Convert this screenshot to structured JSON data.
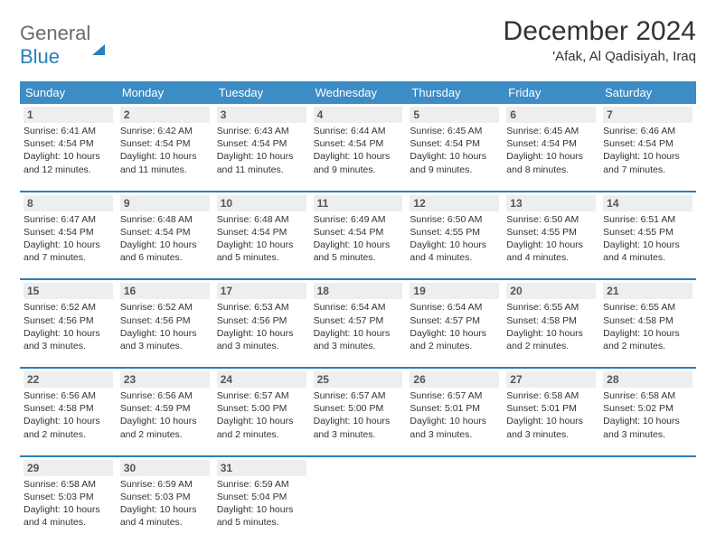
{
  "logo": {
    "text1": "General",
    "text2": "Blue"
  },
  "title": "December 2024",
  "location": "'Afak, Al Qadisiyah, Iraq",
  "colors": {
    "header_bg": "#3c8cc6",
    "accent": "#2a7fba",
    "date_bg": "#eceeef",
    "text": "#333333",
    "logo_gray": "#6a6a6a"
  },
  "dayNames": [
    "Sunday",
    "Monday",
    "Tuesday",
    "Wednesday",
    "Thursday",
    "Friday",
    "Saturday"
  ],
  "weeks": [
    [
      {
        "d": "1",
        "sr": "6:41 AM",
        "ss": "4:54 PM",
        "dl": "10 hours and 12 minutes."
      },
      {
        "d": "2",
        "sr": "6:42 AM",
        "ss": "4:54 PM",
        "dl": "10 hours and 11 minutes."
      },
      {
        "d": "3",
        "sr": "6:43 AM",
        "ss": "4:54 PM",
        "dl": "10 hours and 11 minutes."
      },
      {
        "d": "4",
        "sr": "6:44 AM",
        "ss": "4:54 PM",
        "dl": "10 hours and 9 minutes."
      },
      {
        "d": "5",
        "sr": "6:45 AM",
        "ss": "4:54 PM",
        "dl": "10 hours and 9 minutes."
      },
      {
        "d": "6",
        "sr": "6:45 AM",
        "ss": "4:54 PM",
        "dl": "10 hours and 8 minutes."
      },
      {
        "d": "7",
        "sr": "6:46 AM",
        "ss": "4:54 PM",
        "dl": "10 hours and 7 minutes."
      }
    ],
    [
      {
        "d": "8",
        "sr": "6:47 AM",
        "ss": "4:54 PM",
        "dl": "10 hours and 7 minutes."
      },
      {
        "d": "9",
        "sr": "6:48 AM",
        "ss": "4:54 PM",
        "dl": "10 hours and 6 minutes."
      },
      {
        "d": "10",
        "sr": "6:48 AM",
        "ss": "4:54 PM",
        "dl": "10 hours and 5 minutes."
      },
      {
        "d": "11",
        "sr": "6:49 AM",
        "ss": "4:54 PM",
        "dl": "10 hours and 5 minutes."
      },
      {
        "d": "12",
        "sr": "6:50 AM",
        "ss": "4:55 PM",
        "dl": "10 hours and 4 minutes."
      },
      {
        "d": "13",
        "sr": "6:50 AM",
        "ss": "4:55 PM",
        "dl": "10 hours and 4 minutes."
      },
      {
        "d": "14",
        "sr": "6:51 AM",
        "ss": "4:55 PM",
        "dl": "10 hours and 4 minutes."
      }
    ],
    [
      {
        "d": "15",
        "sr": "6:52 AM",
        "ss": "4:56 PM",
        "dl": "10 hours and 3 minutes."
      },
      {
        "d": "16",
        "sr": "6:52 AM",
        "ss": "4:56 PM",
        "dl": "10 hours and 3 minutes."
      },
      {
        "d": "17",
        "sr": "6:53 AM",
        "ss": "4:56 PM",
        "dl": "10 hours and 3 minutes."
      },
      {
        "d": "18",
        "sr": "6:54 AM",
        "ss": "4:57 PM",
        "dl": "10 hours and 3 minutes."
      },
      {
        "d": "19",
        "sr": "6:54 AM",
        "ss": "4:57 PM",
        "dl": "10 hours and 2 minutes."
      },
      {
        "d": "20",
        "sr": "6:55 AM",
        "ss": "4:58 PM",
        "dl": "10 hours and 2 minutes."
      },
      {
        "d": "21",
        "sr": "6:55 AM",
        "ss": "4:58 PM",
        "dl": "10 hours and 2 minutes."
      }
    ],
    [
      {
        "d": "22",
        "sr": "6:56 AM",
        "ss": "4:58 PM",
        "dl": "10 hours and 2 minutes."
      },
      {
        "d": "23",
        "sr": "6:56 AM",
        "ss": "4:59 PM",
        "dl": "10 hours and 2 minutes."
      },
      {
        "d": "24",
        "sr": "6:57 AM",
        "ss": "5:00 PM",
        "dl": "10 hours and 2 minutes."
      },
      {
        "d": "25",
        "sr": "6:57 AM",
        "ss": "5:00 PM",
        "dl": "10 hours and 3 minutes."
      },
      {
        "d": "26",
        "sr": "6:57 AM",
        "ss": "5:01 PM",
        "dl": "10 hours and 3 minutes."
      },
      {
        "d": "27",
        "sr": "6:58 AM",
        "ss": "5:01 PM",
        "dl": "10 hours and 3 minutes."
      },
      {
        "d": "28",
        "sr": "6:58 AM",
        "ss": "5:02 PM",
        "dl": "10 hours and 3 minutes."
      }
    ],
    [
      {
        "d": "29",
        "sr": "6:58 AM",
        "ss": "5:03 PM",
        "dl": "10 hours and 4 minutes."
      },
      {
        "d": "30",
        "sr": "6:59 AM",
        "ss": "5:03 PM",
        "dl": "10 hours and 4 minutes."
      },
      {
        "d": "31",
        "sr": "6:59 AM",
        "ss": "5:04 PM",
        "dl": "10 hours and 5 minutes."
      }
    ]
  ],
  "labels": {
    "sunrise": "Sunrise:",
    "sunset": "Sunset:",
    "daylight": "Daylight:"
  }
}
